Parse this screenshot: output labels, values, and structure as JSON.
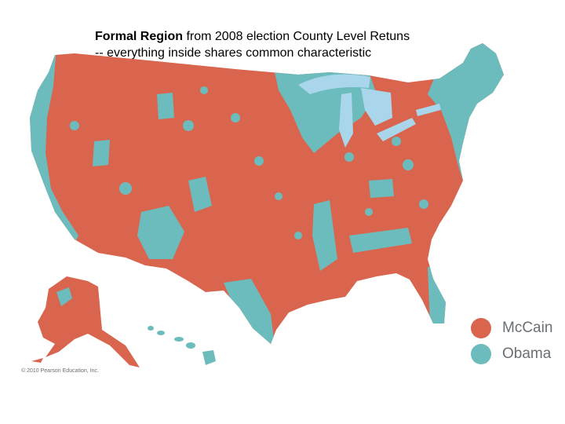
{
  "caption": {
    "bold": "Formal Region",
    "line1_rest": " from 2008 election County Level Retuns",
    "line2": "-- everything inside shares common characteristic"
  },
  "legend": [
    {
      "label": "McCain",
      "color": "#d9654f"
    },
    {
      "label": "Obama",
      "color": "#6cbcbd"
    }
  ],
  "colors": {
    "lakes": "#a9d6ea",
    "background": "#ffffff"
  },
  "copyright": "© 2010 Pearson Education, Inc."
}
